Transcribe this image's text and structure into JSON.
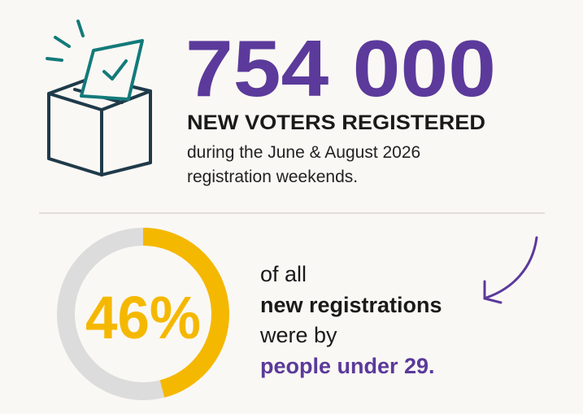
{
  "headline": {
    "number": "754 000",
    "subtitle": "NEW VOTERS REGISTERED",
    "description": [
      "during the June & August 2026",
      "registration weekends."
    ]
  },
  "stat": {
    "value": 46,
    "value_label": "46%",
    "lines": [
      "of all",
      "new registrations",
      "were by",
      "people under 29."
    ]
  }
}
